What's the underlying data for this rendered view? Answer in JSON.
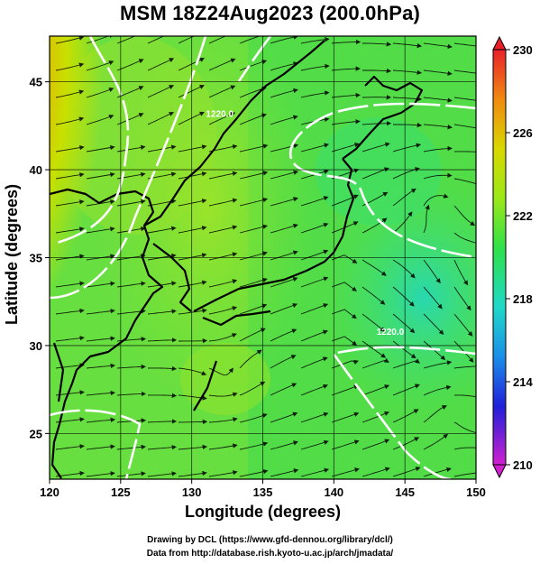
{
  "title": "MSM 18Z24Aug2023 (200.0hPa)",
  "xlabel": "Longitude (degrees)",
  "ylabel": "Latitude  (degrees)",
  "footer_line1": "Drawing by DCL (https://www.gfd-dennou.org/library/dcl/)",
  "footer_line2": "Data from http://database.rish.kyoto-u.ac.jp/arch/jmadata/",
  "x_axis": {
    "min": 120,
    "max": 150,
    "ticks": [
      "120",
      "125",
      "130",
      "135",
      "140",
      "145",
      "150"
    ],
    "tick_values": [
      120,
      125,
      130,
      135,
      140,
      145,
      150
    ]
  },
  "y_axis": {
    "min": 22.4,
    "max": 47.6,
    "ticks": [
      "25",
      "30",
      "35",
      "40",
      "45"
    ],
    "tick_values": [
      25,
      30,
      35,
      40,
      45
    ]
  },
  "colorbar": {
    "labels": [
      "230",
      "226",
      "222",
      "218",
      "214",
      "210"
    ],
    "values": [
      230,
      226,
      222,
      218,
      214,
      210
    ],
    "min": 210,
    "max": 230
  },
  "contour_labels": [
    {
      "text": "1220.0",
      "lon": 131.0,
      "lat": 43.0
    },
    {
      "text": "1220.0",
      "lon": 143.0,
      "lat": 30.6
    }
  ],
  "colors": {
    "high": "#e63a00",
    "mid": "#c8e000",
    "base": "#3ee03e",
    "low": "#30d8a0",
    "coast": "#000000",
    "contour": "#ffffff"
  }
}
